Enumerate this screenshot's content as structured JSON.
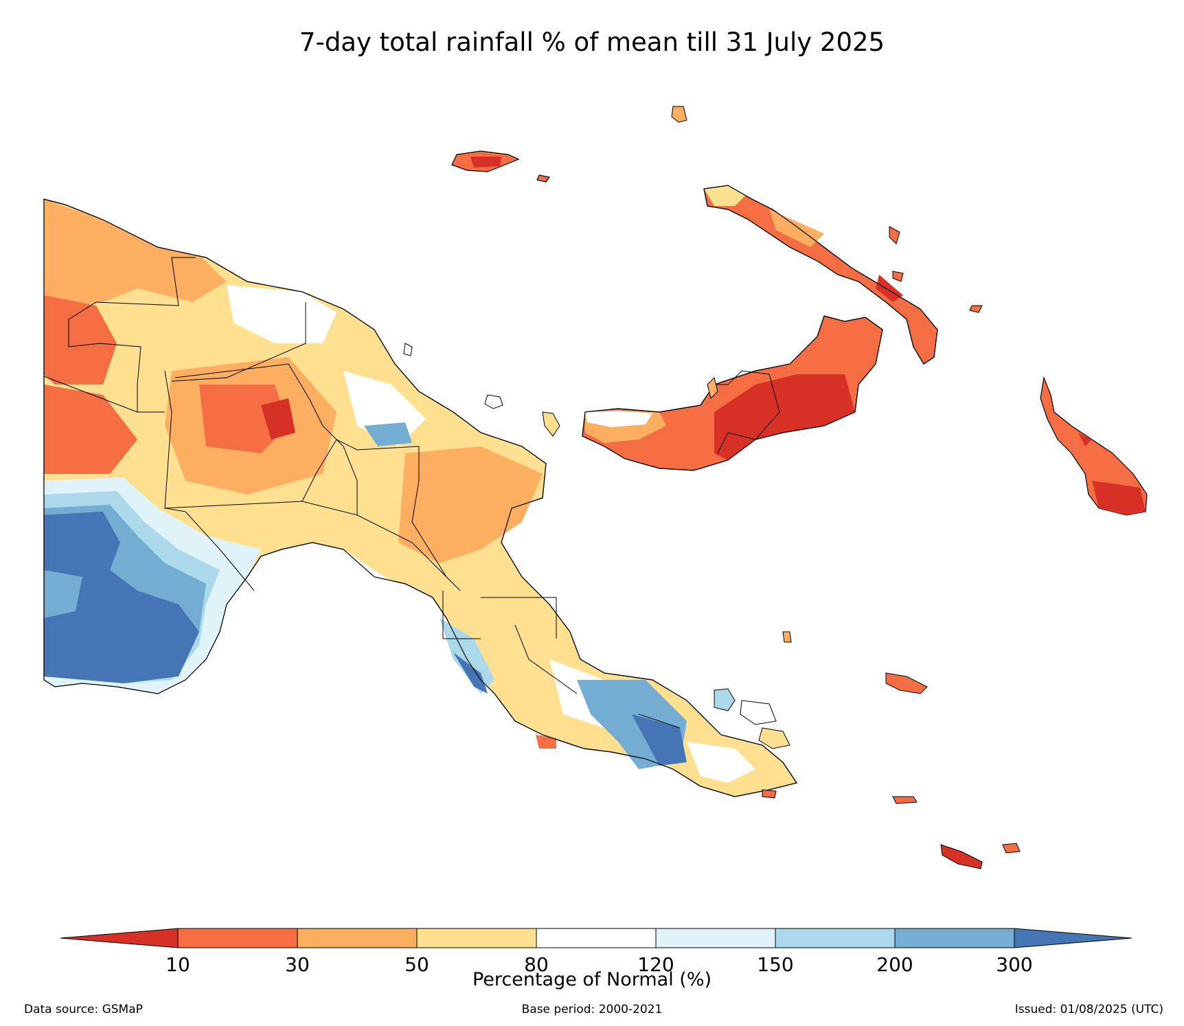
{
  "title": "7-day total rainfall % of mean till 31 July 2025",
  "colorbar": {
    "label": "Percentage of Normal (%)",
    "ticks": [
      "10",
      "30",
      "50",
      "80",
      "120",
      "150",
      "200",
      "300"
    ],
    "colors": [
      "#d73027",
      "#f46d43",
      "#fdae61",
      "#fee090",
      "#ffffff",
      "#e0f3f8",
      "#abd9e9",
      "#74add1",
      "#4575b4"
    ]
  },
  "footer": {
    "source": "Data source: GSMaP",
    "base": "Base period: 2000-2021",
    "issued": "Issued: 01/08/2025 (UTC)"
  }
}
